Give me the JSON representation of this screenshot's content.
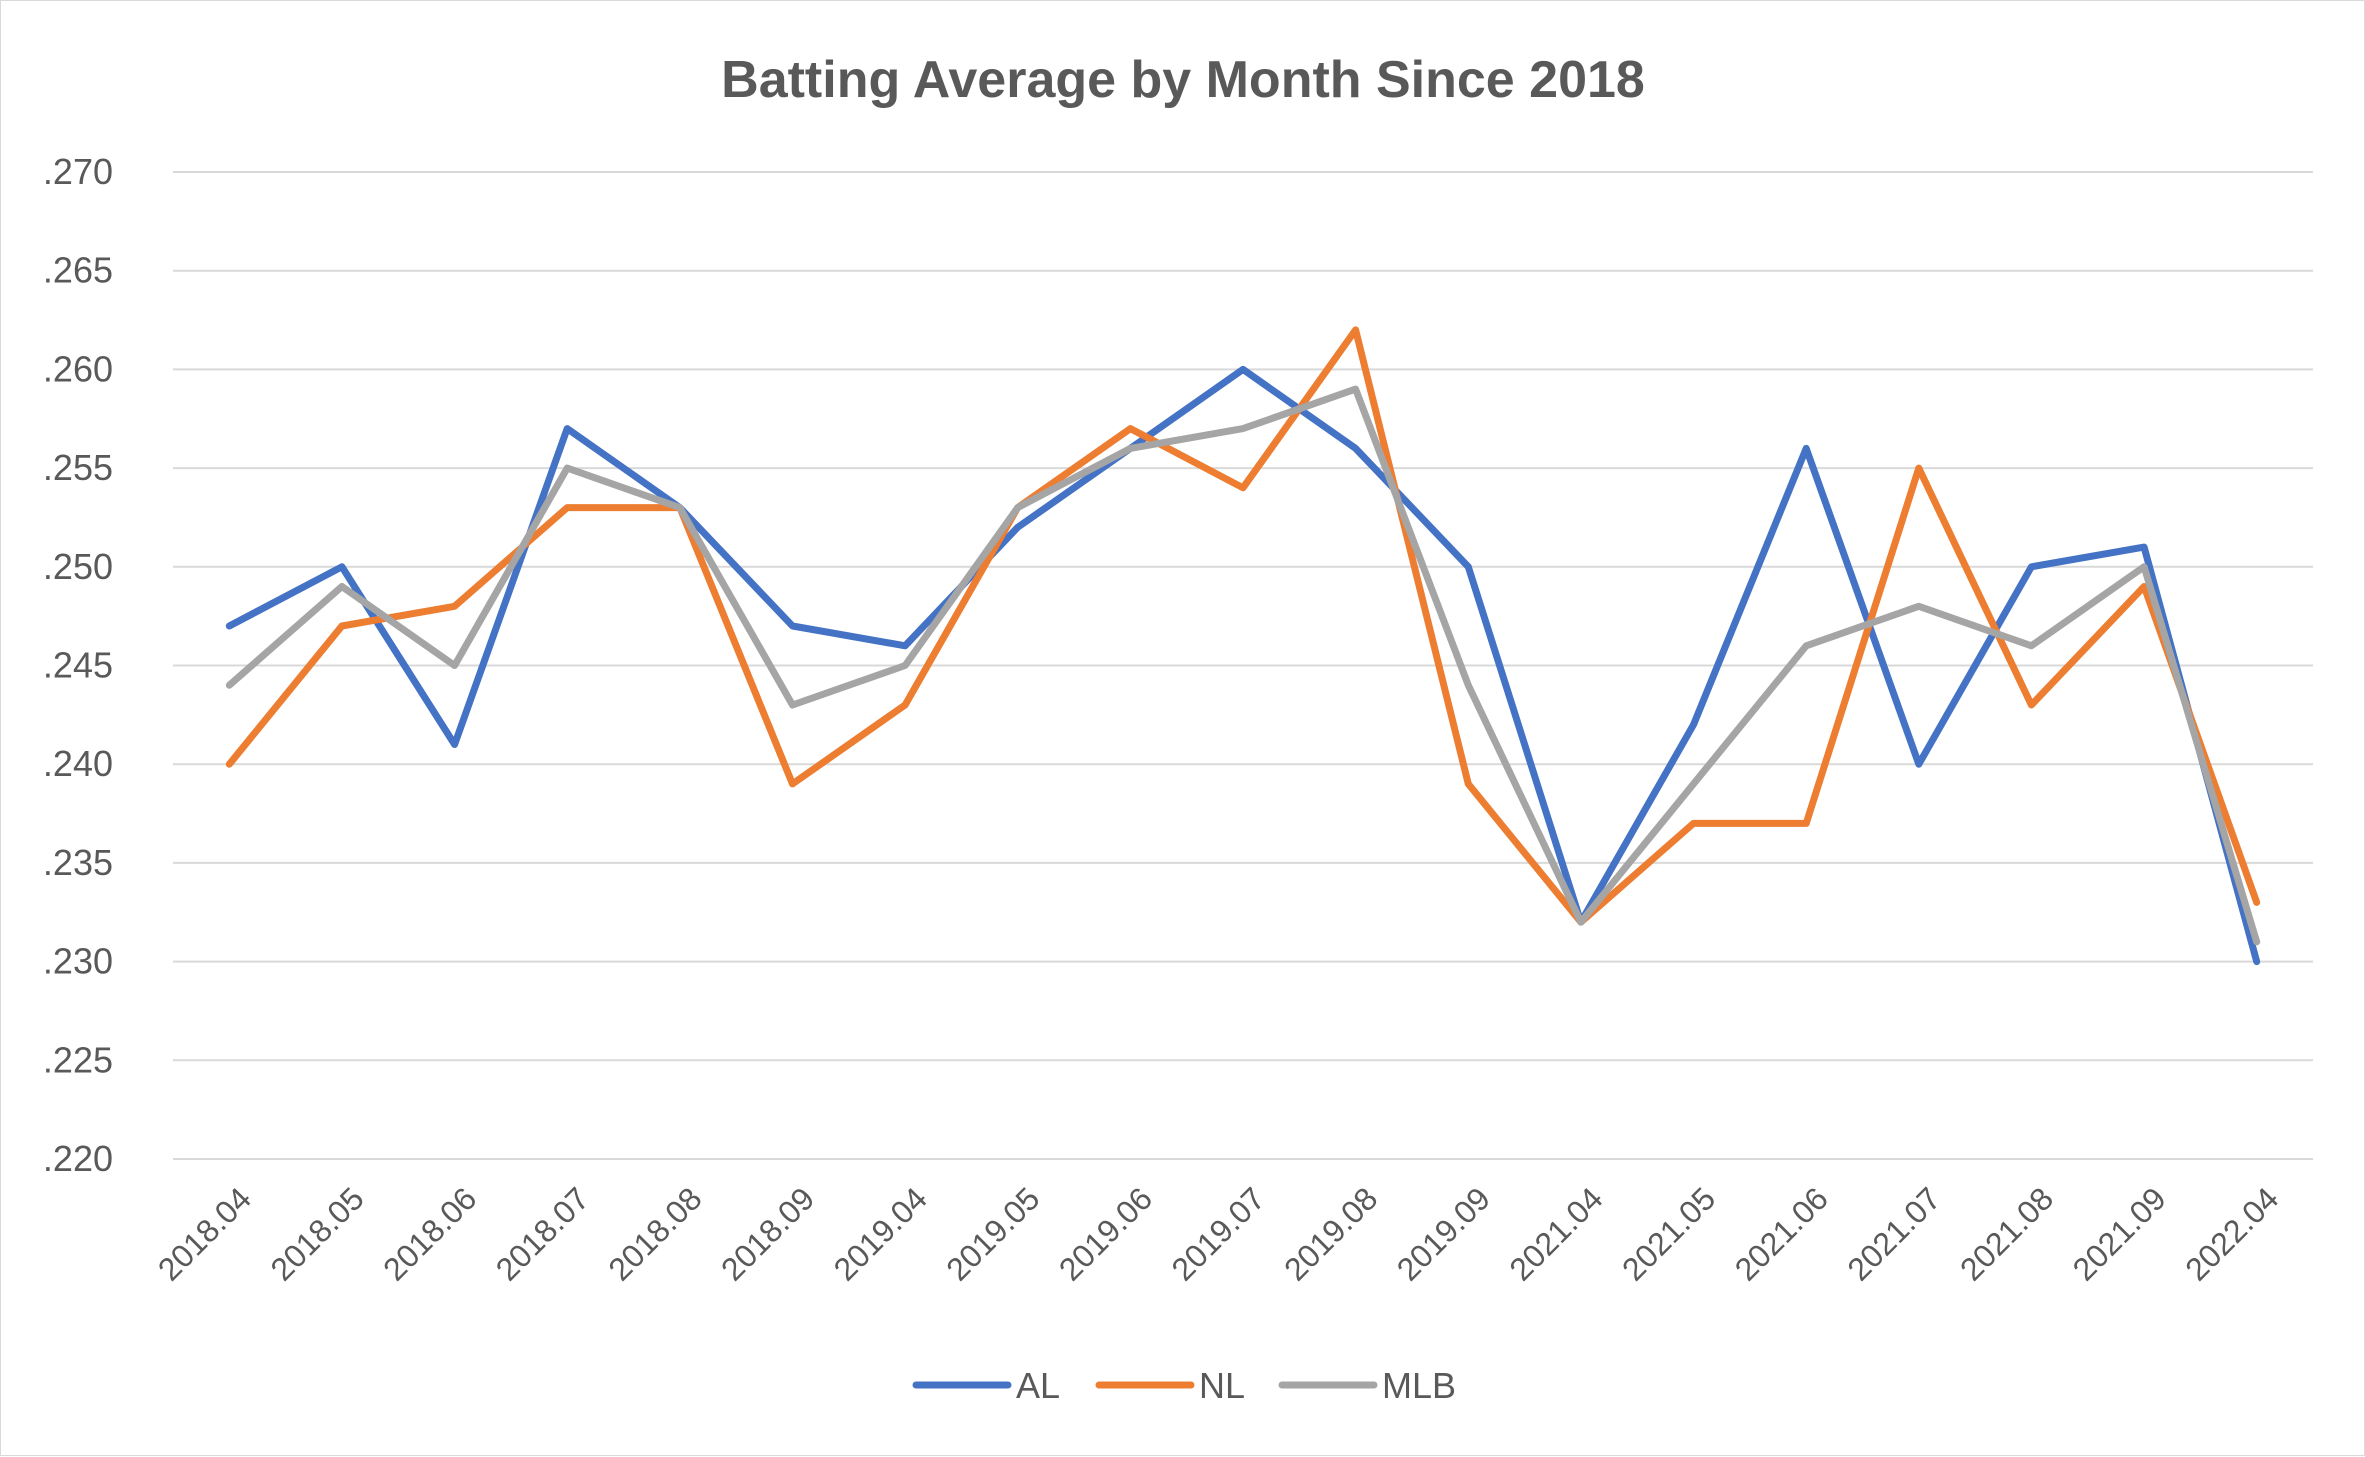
{
  "chart_data": {
    "type": "line",
    "title": "Batting Average by Month Since 2018",
    "xlabel": "",
    "ylabel": "",
    "categories": [
      "2018.04",
      "2018.05",
      "2018.06",
      "2018.07",
      "2018.08",
      "2018.09",
      "2019.04",
      "2019.05",
      "2019.06",
      "2019.07",
      "2019.08",
      "2019.09",
      "2021.04",
      "2021.05",
      "2021.06",
      "2021.07",
      "2021.08",
      "2021.09",
      "2022.04"
    ],
    "ylim": [
      0.22,
      0.27
    ],
    "yticks": [
      ".220",
      ".225",
      ".230",
      ".235",
      ".240",
      ".245",
      ".250",
      ".255",
      ".260",
      ".265",
      ".270"
    ],
    "grid": true,
    "legend_position": "bottom",
    "series": [
      {
        "name": "AL",
        "color": "#4472c4",
        "values": [
          0.247,
          0.25,
          0.241,
          0.257,
          0.253,
          0.247,
          0.246,
          0.252,
          0.256,
          0.26,
          0.256,
          0.25,
          0.232,
          0.242,
          0.256,
          0.24,
          0.25,
          0.251,
          0.23
        ]
      },
      {
        "name": "NL",
        "color": "#ed7d31",
        "values": [
          0.24,
          0.247,
          0.248,
          0.253,
          0.253,
          0.239,
          0.243,
          0.253,
          0.257,
          0.254,
          0.262,
          0.239,
          0.232,
          0.237,
          0.237,
          0.255,
          0.243,
          0.249,
          0.233
        ]
      },
      {
        "name": "MLB",
        "color": "#a5a5a5",
        "values": [
          0.244,
          0.249,
          0.245,
          0.255,
          0.253,
          0.243,
          0.245,
          0.253,
          0.256,
          0.257,
          0.259,
          0.244,
          0.232,
          0.239,
          0.246,
          0.248,
          0.246,
          0.25,
          0.231
        ]
      }
    ]
  }
}
